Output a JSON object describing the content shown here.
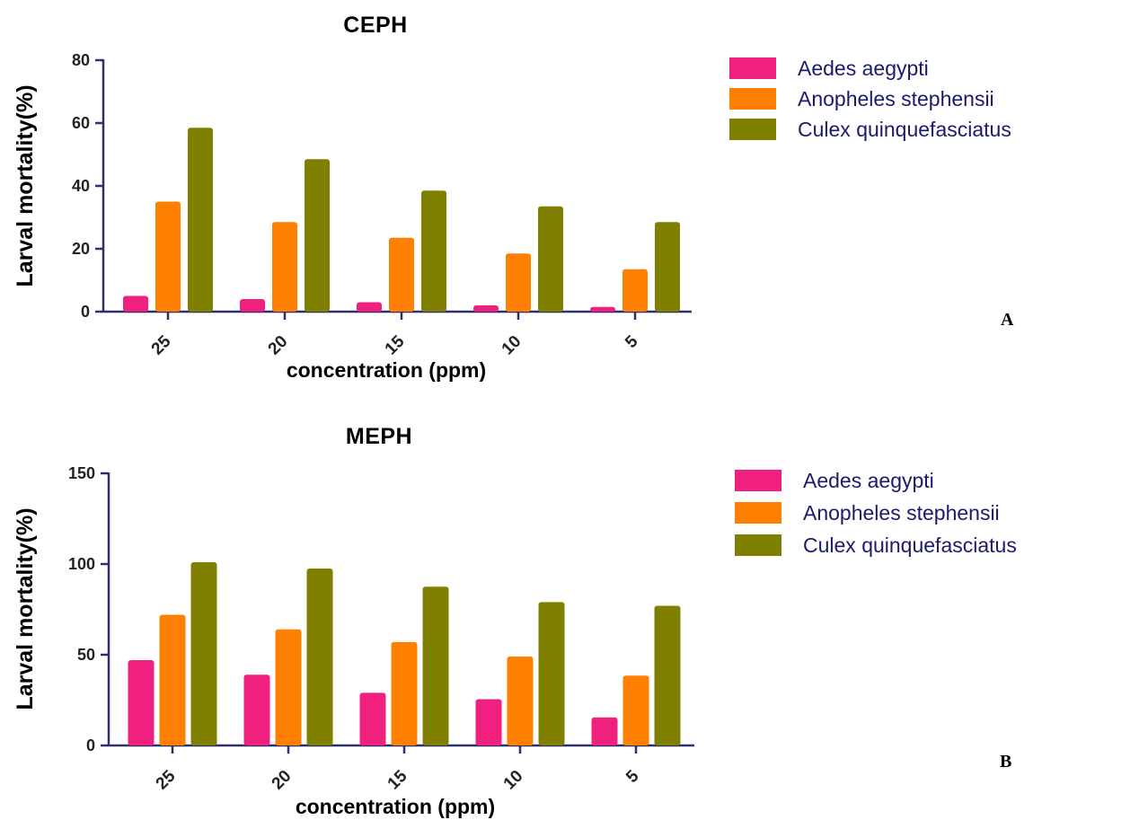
{
  "chart_data": [
    {
      "type": "bar",
      "title": "CEPH",
      "panel_label": "A",
      "xlabel": "concentration (ppm)",
      "ylabel": "Larval mortality(%)",
      "categories": [
        "25",
        "20",
        "15",
        "10",
        "5"
      ],
      "ylim": [
        0,
        80
      ],
      "yticks": [
        "0",
        "20",
        "40",
        "60",
        "80"
      ],
      "grid": false,
      "legend_position": "right",
      "series": [
        {
          "name": "Aedes aegypti",
          "color": "#f0207f",
          "values": [
            5,
            4,
            3,
            2,
            1.5
          ]
        },
        {
          "name": "Anopheles stephensii",
          "color": "#ff8000",
          "values": [
            35,
            28.5,
            23.5,
            18.5,
            13.5
          ]
        },
        {
          "name": "Culex quinquefasciatus",
          "color": "#808000",
          "values": [
            58.5,
            48.5,
            38.5,
            33.5,
            28.5
          ]
        }
      ]
    },
    {
      "type": "bar",
      "title": "MEPH",
      "panel_label": "B",
      "xlabel": "concentration (ppm)",
      "ylabel": "Larval mortality(%)",
      "categories": [
        "25",
        "20",
        "15",
        "10",
        "5"
      ],
      "ylim": [
        0,
        150
      ],
      "yticks": [
        "0",
        "50",
        "100",
        "150"
      ],
      "grid": false,
      "legend_position": "right",
      "series": [
        {
          "name": "Aedes aegypti",
          "color": "#f0207f",
          "values": [
            47,
            39,
            29,
            25.5,
            15.5
          ]
        },
        {
          "name": "Anopheles stephensii",
          "color": "#ff8000",
          "values": [
            72,
            64,
            57,
            49,
            38.5
          ]
        },
        {
          "name": "Culex quinquefasciatus",
          "color": "#808000",
          "values": [
            101,
            97.5,
            87.5,
            79,
            77
          ]
        }
      ]
    }
  ]
}
